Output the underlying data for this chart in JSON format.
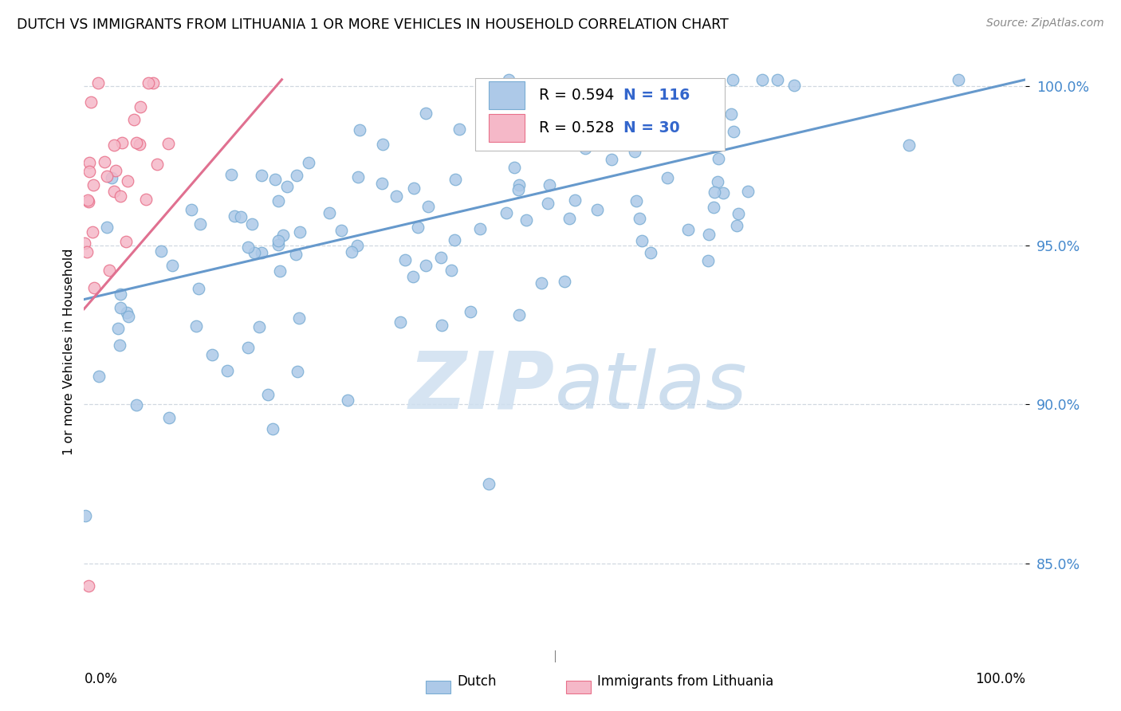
{
  "title": "DUTCH VS IMMIGRANTS FROM LITHUANIA 1 OR MORE VEHICLES IN HOUSEHOLD CORRELATION CHART",
  "source": "Source: ZipAtlas.com",
  "ylabel": "1 or more Vehicles in Household",
  "legend_dutch": "Dutch",
  "legend_lithuania": "Immigrants from Lithuania",
  "r_dutch": 0.594,
  "n_dutch": 116,
  "r_lithuania": 0.528,
  "n_lithuania": 30,
  "ytick_labels": [
    "85.0%",
    "90.0%",
    "95.0%",
    "100.0%"
  ],
  "ytick_values": [
    0.85,
    0.9,
    0.95,
    1.0
  ],
  "xlim": [
    0.0,
    1.0
  ],
  "ylim": [
    0.825,
    1.008
  ],
  "dutch_color": "#adc9e8",
  "dutch_edge_color": "#7aadd4",
  "lithuania_color": "#f5b8c8",
  "lithuania_edge_color": "#e8708a",
  "dutch_line_color": "#6699cc",
  "lithuania_line_color": "#e07090",
  "watermark_color": "#cfe0f0",
  "grid_color": "#d0d8e0",
  "tick_color": "#4488cc",
  "source_color": "#888888",
  "legend_r_color": "#000000",
  "legend_n_color": "#3366cc"
}
